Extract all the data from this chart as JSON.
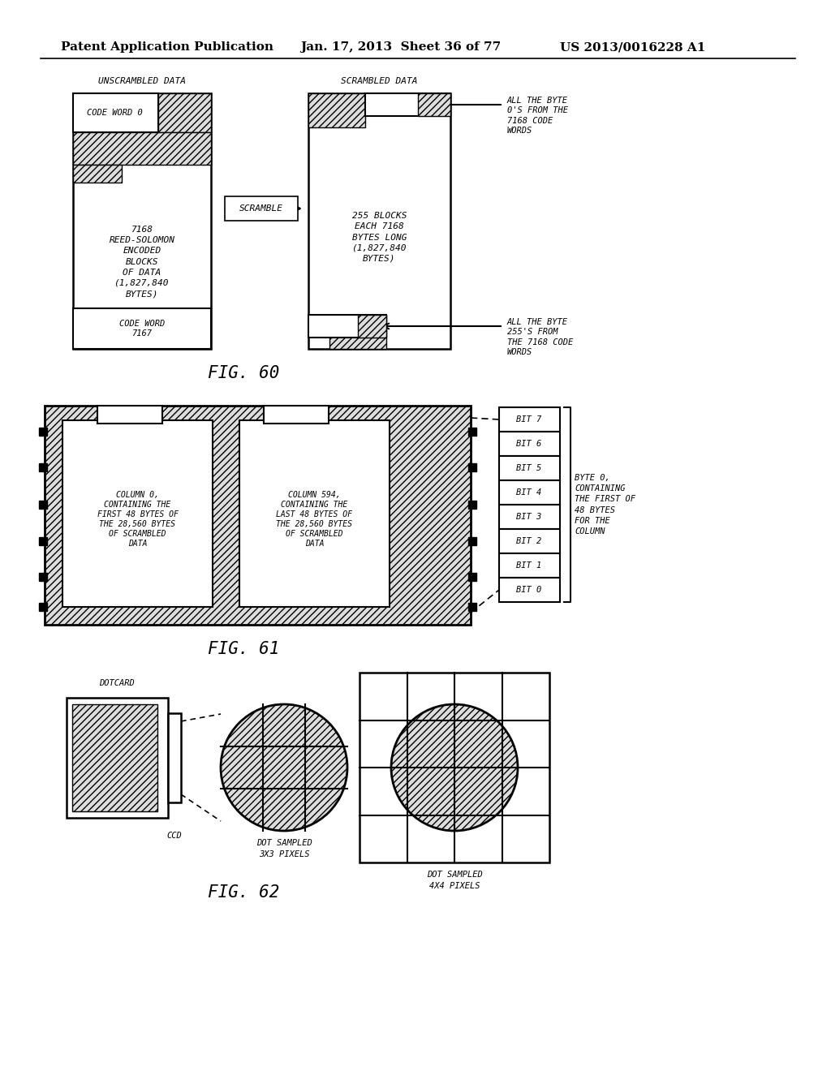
{
  "bg_color": "#ffffff",
  "header_text": "Patent Application Publication",
  "header_date": "Jan. 17, 2013  Sheet 36 of 77",
  "header_patent": "US 2013/0016228 A1",
  "fig60_label": "FIG. 60",
  "fig61_label": "FIG. 61",
  "fig62_label": "FIG. 62",
  "unscrambled_label": "UNSCRAMBLED DATA",
  "scrambled_label": "SCRAMBLED DATA",
  "scramble_arrow": "SCRAMBLE",
  "codeword0_label": "CODE WORD 0",
  "codeword7167_label": "CODE WORD\n7167",
  "main_text_left": "7168\nREED-SOLOMON\nENCODED\nBLOCKS\nOF DATA\n(1,827,840\nBYTES)",
  "main_text_right": "255 BLOCKS\nEACH 7168\nBYTES LONG\n(1,827,840\nBYTES)",
  "all_byte0_text": "ALL THE BYTE\n0'S FROM THE\n7168 CODE\nWORDS",
  "all_byte255_text": "ALL THE BYTE\n255'S FROM\nTHE 7168 CODE\nWORDS",
  "col0_text": "COLUMN 0,\nCONTAINING THE\nFIRST 48 BYTES OF\nTHE 28,560 BYTES\nOF SCRAMBLED\nDATA",
  "col594_text": "COLUMN 594,\nCONTAINING THE\nLAST 48 BYTES OF\nTHE 28,560 BYTES\nOF SCRAMBLED\nDATA",
  "byte0_text": "BYTE 0,\nCONTAINING\nTHE FIRST OF\n48 BYTES\nFOR THE\nCOLUMN",
  "bit_labels": [
    "BIT 7",
    "BIT 6",
    "BIT 5",
    "BIT 4",
    "BIT 3",
    "BIT 2",
    "BIT 1",
    "BIT 0"
  ],
  "dotcard_label": "DOTCARD",
  "ccd_label": "CCD",
  "dot3x3_label": "DOT SAMPLED\n3X3 PIXELS",
  "dot4x4_label": "DOT SAMPLED\n4X4 PIXELS"
}
